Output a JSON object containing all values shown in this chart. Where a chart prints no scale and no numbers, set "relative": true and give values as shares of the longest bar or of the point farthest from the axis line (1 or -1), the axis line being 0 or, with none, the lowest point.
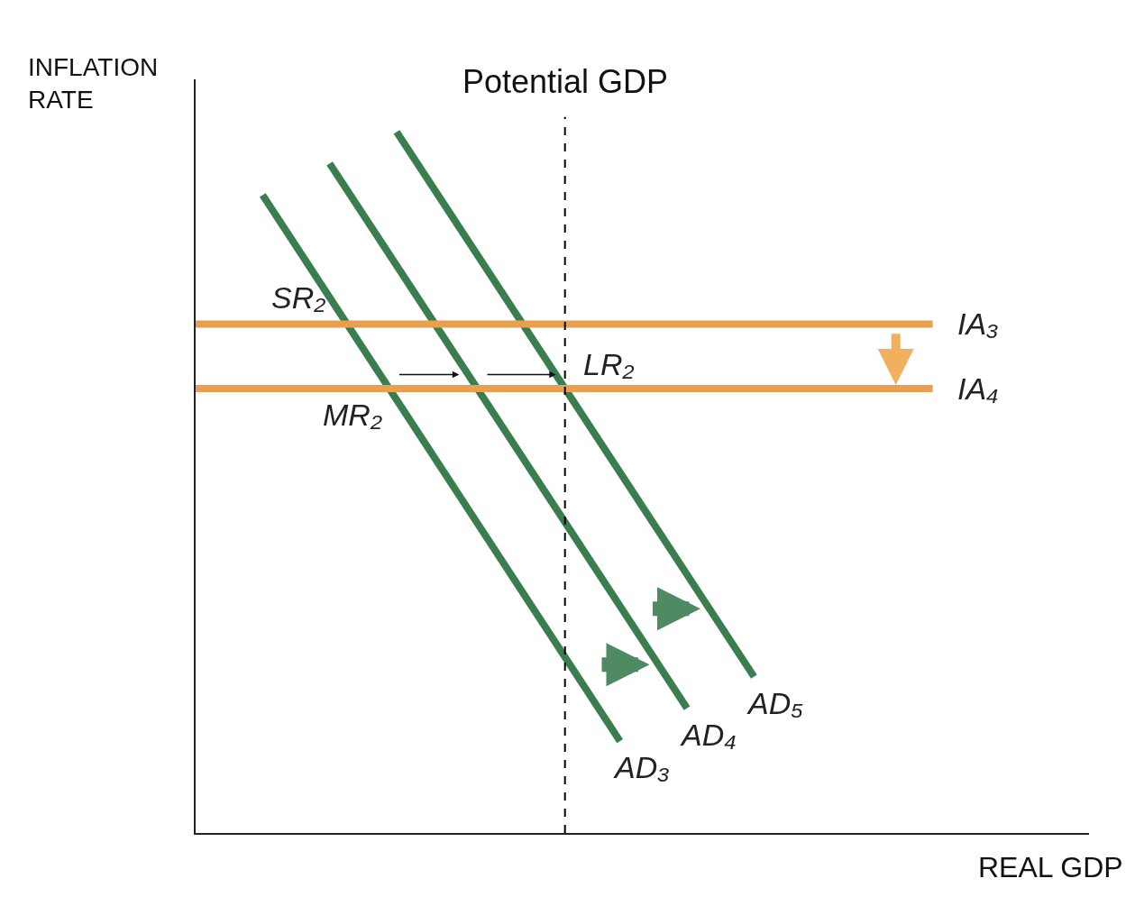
{
  "chart_data": {
    "type": "line",
    "relative": true,
    "xlabel": "REAL GDP",
    "ylabel": "INFLATION RATE",
    "legend": false,
    "marker": "none",
    "line_style": "solid",
    "categories": [
      null,
      null,
      null,
      null,
      null,
      null,
      null,
      null,
      null,
      null,
      null,
      null,
      null,
      null,
      null,
      null,
      null,
      null,
      null,
      null,
      null,
      null,
      null,
      null,
      null,
      null,
      null,
      null,
      null,
      null,
      null,
      null,
      null,
      null,
      null,
      null,
      null,
      null,
      null,
      null,
      null
    ],
    "series": [
      {
        "name": "AD₃",
        "color": "#3a7d4f",
        "values": [
          null,
          null,
          null,
          0.91,
          null,
          null,
          null,
          null,
          null,
          null,
          null,
          null,
          null,
          null,
          null,
          null,
          null,
          null,
          null,
          0.131,
          null,
          null,
          null,
          null,
          null,
          null,
          null,
          null,
          null,
          null,
          null,
          null,
          null,
          null,
          null,
          null,
          null,
          null,
          null,
          null,
          null
        ]
      },
      {
        "name": "AD₄",
        "color": "#3a7d4f",
        "values": [
          null,
          null,
          null,
          null,
          null,
          null,
          0.955,
          null,
          null,
          null,
          null,
          null,
          null,
          null,
          null,
          null,
          null,
          null,
          null,
          null,
          null,
          null,
          0.178,
          null,
          null,
          null,
          null,
          null,
          null,
          null,
          null,
          null,
          null,
          null,
          null,
          null,
          null,
          null,
          null,
          null,
          null
        ]
      },
      {
        "name": "AD₅",
        "color": "#3a7d4f",
        "values": [
          null,
          null,
          null,
          null,
          null,
          null,
          null,
          null,
          null,
          1,
          null,
          null,
          null,
          null,
          null,
          null,
          null,
          null,
          null,
          null,
          null,
          null,
          null,
          null,
          null,
          0.223,
          null,
          null,
          null,
          null,
          null,
          null,
          null,
          null,
          null,
          null,
          null,
          null,
          null,
          null,
          null
        ]
      },
      {
        "name": "IA₃",
        "color": "#e8a050",
        "values": [
          0.726,
          0.726,
          0.726,
          0.726,
          0.726,
          0.726,
          0.726,
          0.726,
          0.726,
          0.726,
          0.726,
          0.726,
          0.726,
          0.726,
          0.726,
          0.726,
          0.726,
          0.726,
          0.726,
          0.726,
          0.726,
          0.726,
          0.726,
          0.726,
          0.726,
          0.726,
          0.726,
          0.726,
          0.726,
          0.726,
          0.726,
          0.726,
          0.726,
          0.726,
          null,
          null,
          null,
          null,
          null,
          null,
          null
        ]
      },
      {
        "name": "IA₄",
        "color": "#e8a050",
        "values": [
          0.634,
          0.634,
          0.634,
          0.634,
          0.634,
          0.634,
          0.634,
          0.634,
          0.634,
          0.634,
          0.634,
          0.634,
          0.634,
          0.634,
          0.634,
          0.634,
          0.634,
          0.634,
          0.634,
          0.634,
          0.634,
          0.634,
          0.634,
          0.634,
          0.634,
          0.634,
          0.634,
          0.634,
          0.634,
          0.634,
          0.634,
          0.634,
          0.634,
          0.634,
          null,
          null,
          null,
          null,
          null,
          null,
          null
        ]
      }
    ],
    "annotations": [
      "Potential GDP",
      "SR₂",
      "MR₂",
      "LR₂"
    ]
  }
}
